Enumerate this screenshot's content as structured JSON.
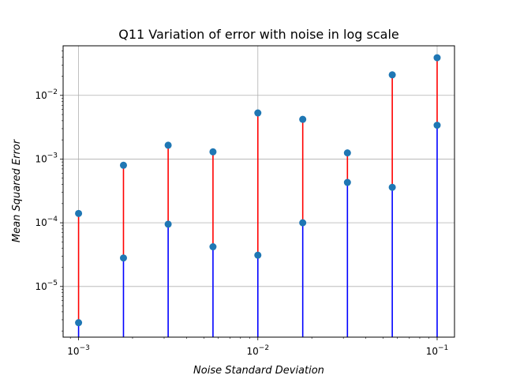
{
  "chart_data": {
    "type": "scatter",
    "title": "Q11 Variation of error with noise in log scale",
    "xlabel": "Noise Standard Deviation",
    "ylabel": "Mean Squared Error",
    "xscale": "log",
    "yscale": "log",
    "xlim": [
      0.00082,
      0.125
    ],
    "ylim": [
      1.6e-06,
      0.06
    ],
    "grid": true,
    "x_ticks": [
      {
        "value": 0.001,
        "base": "10",
        "exp": "−3"
      },
      {
        "value": 0.01,
        "base": "10",
        "exp": "−2"
      },
      {
        "value": 0.1,
        "base": "10",
        "exp": "−1"
      }
    ],
    "y_ticks": [
      {
        "value": 1e-05,
        "base": "10",
        "exp": "−5"
      },
      {
        "value": 0.0001,
        "base": "10",
        "exp": "−4"
      },
      {
        "value": 0.001,
        "base": "10",
        "exp": "−3"
      },
      {
        "value": 0.01,
        "base": "10",
        "exp": "−2"
      }
    ],
    "x": [
      0.001,
      0.00178,
      0.00316,
      0.00562,
      0.01,
      0.0178,
      0.0316,
      0.0562,
      0.1
    ],
    "series": [
      {
        "color": "#ff0000",
        "values": [
          0.00014,
          0.0008,
          0.00165,
          0.0013,
          0.0053,
          0.0042,
          0.00125,
          0.021,
          0.039
        ]
      },
      {
        "color": "#0000ff",
        "values": [
          2.7e-06,
          2.8e-05,
          9.5e-05,
          4.2e-05,
          3.1e-05,
          0.0001,
          0.00043,
          0.00036,
          0.0034
        ]
      }
    ],
    "marker_color": "#1f77b4"
  }
}
